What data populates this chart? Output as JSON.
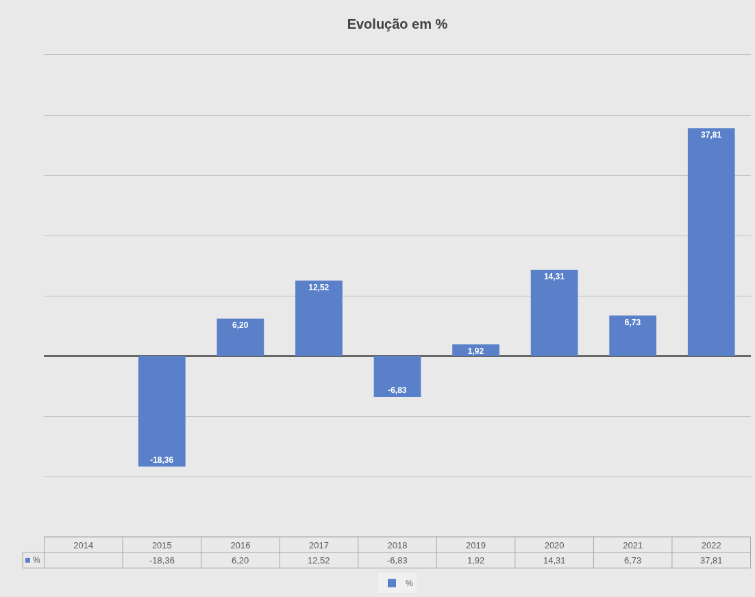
{
  "chart_data": {
    "type": "bar",
    "title": "Evolução em %",
    "categories": [
      "2014",
      "2015",
      "2016",
      "2017",
      "2018",
      "2019",
      "2020",
      "2021",
      "2022"
    ],
    "series": [
      {
        "name": "%",
        "color": "#5a80c9",
        "values": [
          null,
          -18.36,
          6.2,
          12.52,
          -6.83,
          1.92,
          14.31,
          6.73,
          37.81
        ],
        "value_labels": [
          null,
          "-18,36",
          "6,20",
          "12,52",
          "-6,83",
          "1,92",
          "14,31",
          "6,73",
          "37,81"
        ]
      }
    ],
    "ylim": [
      -30,
      50
    ],
    "yticks": [
      {
        "value": -30,
        "label": null
      },
      {
        "value": -20,
        "label": null
      },
      {
        "value": -10,
        "label": null
      },
      {
        "value": 0,
        "label": null
      },
      {
        "value": 10,
        "label": null
      },
      {
        "value": 20,
        "label": null
      },
      {
        "value": 30,
        "label": null
      },
      {
        "value": 40,
        "label": null
      },
      {
        "value": 50,
        "label": null
      }
    ],
    "grid": "y",
    "legend": "bottom",
    "tick_labels": "x"
  }
}
